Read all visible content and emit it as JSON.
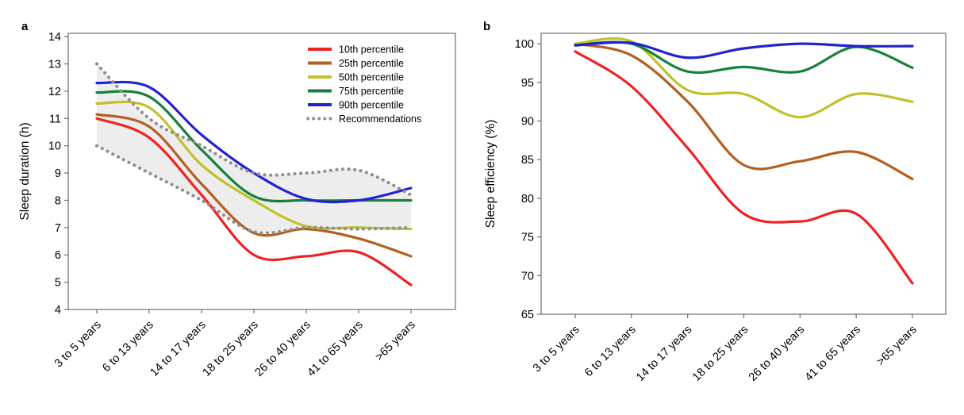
{
  "figure": {
    "background": "#ffffff"
  },
  "chart_data": [
    {
      "type": "line",
      "panel_label": "a",
      "title": "",
      "xlabel": "",
      "ylabel": "Sleep duration (h)",
      "ylim": [
        4,
        14
      ],
      "yticks": [
        4,
        5,
        6,
        7,
        8,
        9,
        10,
        11,
        12,
        13,
        14
      ],
      "grid": false,
      "legend_position": "top-right",
      "categories": [
        "3 to 5 years",
        "6 to 13 years",
        "14 to 17 years",
        "18 to 25 years",
        "26 to 40 years",
        "41 to 65 years",
        ">65 years"
      ],
      "series": [
        {
          "name": "10th percentile",
          "color": "#ee2224",
          "values": [
            11.0,
            10.3,
            8.2,
            6.0,
            5.95,
            6.1,
            4.9
          ]
        },
        {
          "name": "25th percentile",
          "color": "#b45f1e",
          "values": [
            11.15,
            10.7,
            8.6,
            6.8,
            6.95,
            6.6,
            5.95
          ]
        },
        {
          "name": "50th percentile",
          "color": "#bfc22a",
          "values": [
            11.55,
            11.4,
            9.3,
            8.0,
            7.05,
            7.0,
            6.95
          ]
        },
        {
          "name": "75th percentile",
          "color": "#17803a",
          "values": [
            11.95,
            11.8,
            9.85,
            8.15,
            8.0,
            8.0,
            8.0
          ]
        },
        {
          "name": "90th percentile",
          "color": "#2023cf",
          "values": [
            12.3,
            12.15,
            10.4,
            9.0,
            8.05,
            8.0,
            8.45
          ]
        }
      ],
      "band": {
        "name": "Recommendations",
        "edge_color": "#8f8f8f",
        "fill_color": "#ebebeb",
        "upper": [
          13.0,
          11.0,
          10.0,
          9.0,
          9.0,
          9.1,
          8.2
        ],
        "lower": [
          10.0,
          9.0,
          8.0,
          6.85,
          7.0,
          6.95,
          7.0
        ]
      }
    },
    {
      "type": "line",
      "panel_label": "b",
      "title": "",
      "xlabel": "",
      "ylabel": "Sleep efficiency (%)",
      "ylim": [
        65,
        100
      ],
      "yticks": [
        65,
        70,
        75,
        80,
        85,
        90,
        95,
        100
      ],
      "grid": false,
      "legend_position": "none",
      "categories": [
        "3 to 5 years",
        "6 to 13 years",
        "14 to 17 years",
        "18 to 25 years",
        "26 to 40 years",
        "41 to 65 years",
        ">65 years"
      ],
      "series": [
        {
          "name": "10th percentile",
          "color": "#ee2224",
          "values": [
            99.0,
            94.5,
            86.5,
            78.0,
            77.0,
            78.0,
            69.0
          ]
        },
        {
          "name": "25th percentile",
          "color": "#b45f1e",
          "values": [
            100.0,
            98.5,
            92.5,
            84.3,
            84.8,
            86.0,
            82.5
          ]
        },
        {
          "name": "50th percentile",
          "color": "#bfc22a",
          "values": [
            100.0,
            100.3,
            94.0,
            93.5,
            90.5,
            93.5,
            92.5
          ]
        },
        {
          "name": "75th percentile",
          "color": "#17803a",
          "values": [
            99.8,
            100.0,
            96.4,
            97.0,
            96.4,
            99.6,
            96.9
          ]
        },
        {
          "name": "90th percentile",
          "color": "#2023cf",
          "values": [
            99.8,
            100.1,
            98.2,
            99.4,
            100.0,
            99.7,
            99.7
          ]
        }
      ]
    }
  ]
}
